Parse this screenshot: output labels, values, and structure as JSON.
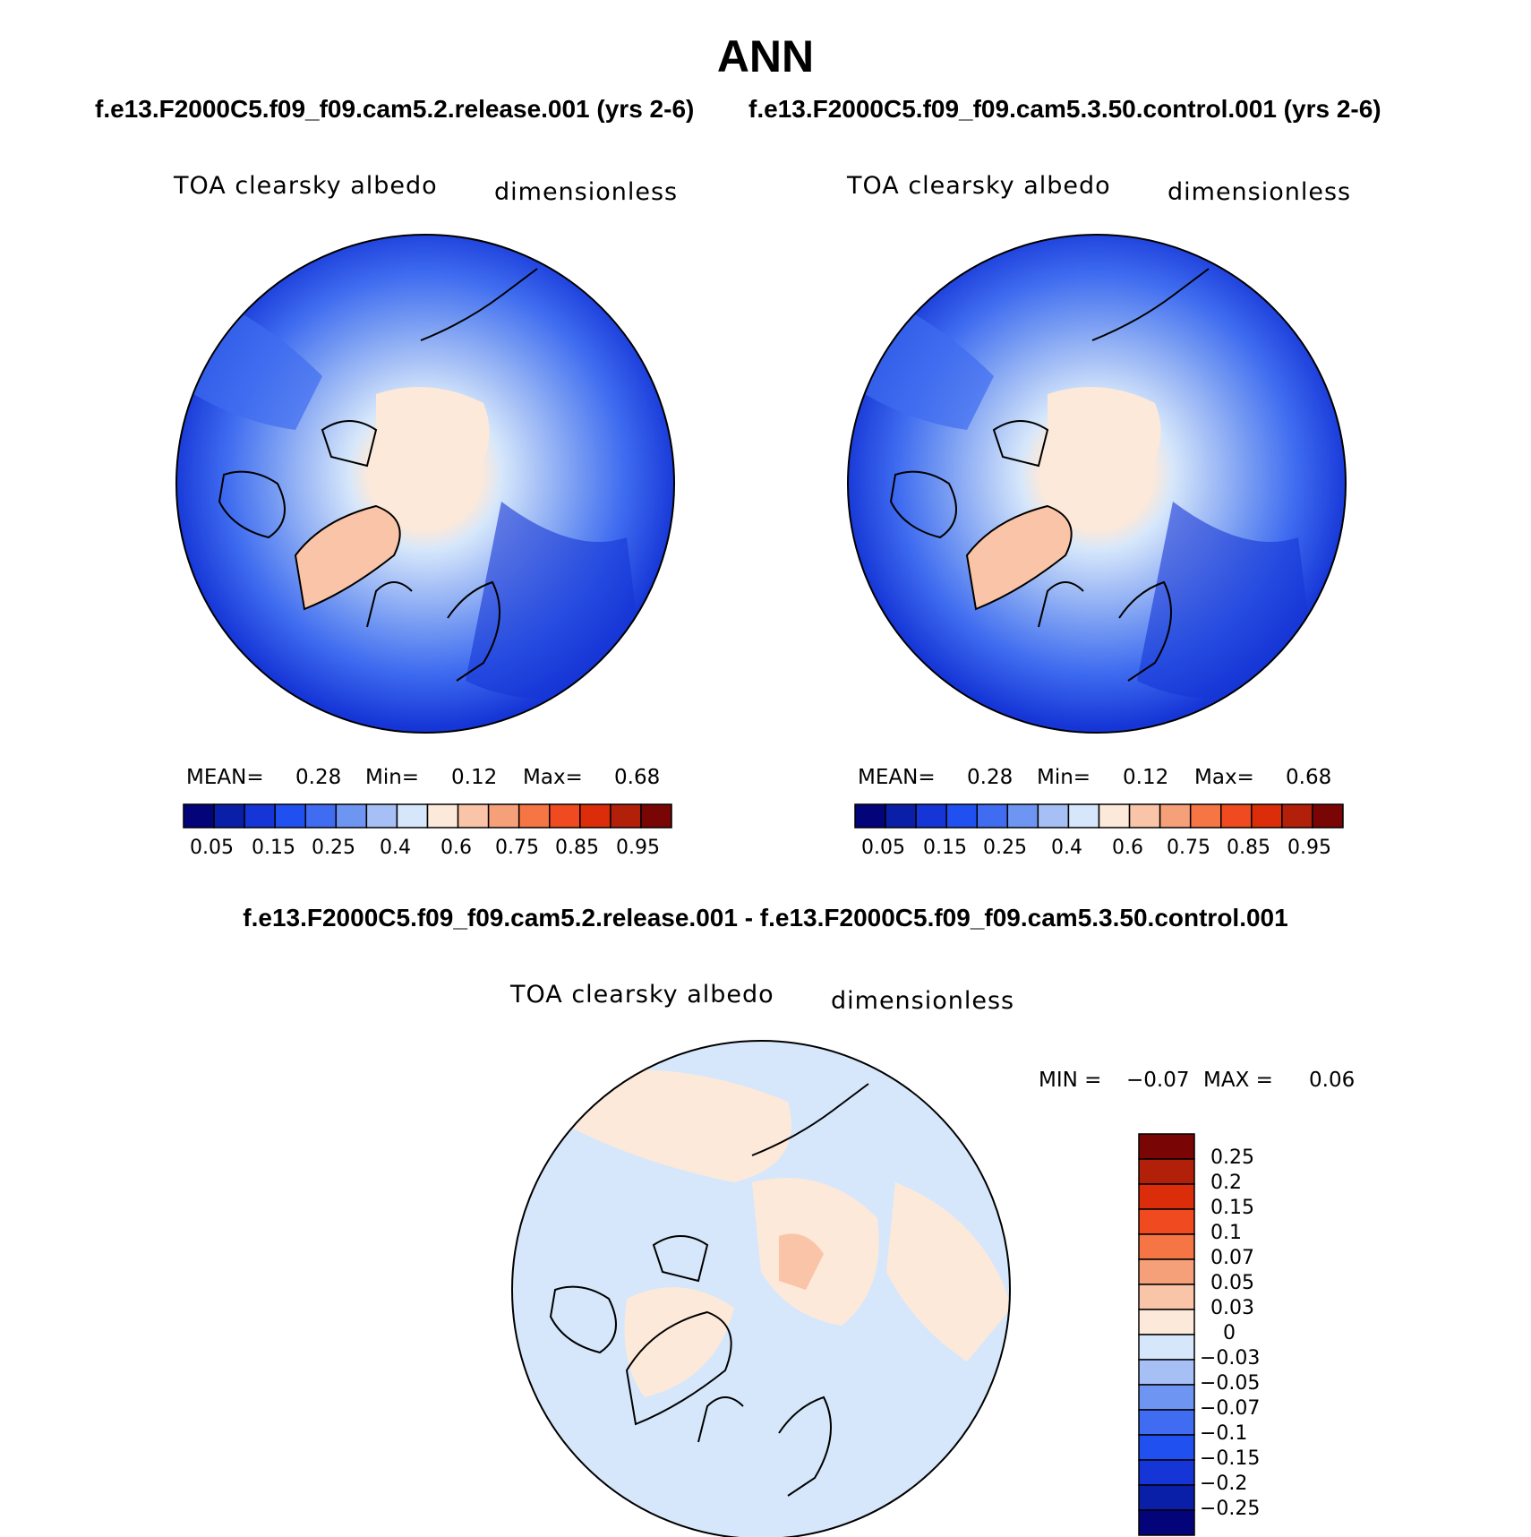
{
  "page": {
    "title": "ANN",
    "case_a_title": "f.e13.F2000C5.f09_f09.cam5.2.release.001 (yrs 2-6)",
    "case_b_title": "f.e13.F2000C5.f09_f09.cam5.3.50.control.001 (yrs 2-6)",
    "diff_title": "f.e13.F2000C5.f09_f09.cam5.2.release.001 - f.e13.F2000C5.f09_f09.cam5.3.50.control.001"
  },
  "panels": [
    {
      "id": "case-a",
      "variable": "TOA clearsky albedo",
      "units": "dimensionless",
      "stats": {
        "mean_label": "MEAN=",
        "mean": "0.28",
        "min_label": "Min=",
        "min": "0.12",
        "max_label": "Max=",
        "max": "0.68"
      }
    },
    {
      "id": "case-b",
      "variable": "TOA clearsky albedo",
      "units": "dimensionless",
      "stats": {
        "mean_label": "MEAN=",
        "mean": "0.28",
        "min_label": "Min=",
        "min": "0.12",
        "max_label": "Max=",
        "max": "0.68"
      }
    },
    {
      "id": "difference",
      "variable": "TOA clearsky albedo",
      "units": "dimensionless",
      "stats": {
        "min_label": "MIN =",
        "min": "−0.07",
        "max_label": "MAX =",
        "max": "0.06"
      }
    }
  ],
  "colorbar_main": {
    "colors": [
      "#04047a",
      "#0a1fa8",
      "#1535d6",
      "#2050f0",
      "#3f6cf0",
      "#6f95f2",
      "#a6c0f6",
      "#d6e7fb",
      "#fce9da",
      "#f9c4a8",
      "#f6a07a",
      "#f57545",
      "#f04a20",
      "#db2d0a",
      "#b3200a",
      "#7a0505"
    ],
    "labels": [
      "0.05",
      "0.15",
      "0.25",
      "0.4",
      "0.6",
      "0.75",
      "0.85",
      "0.95"
    ]
  },
  "colorbar_diff": {
    "colors_top_to_bottom": [
      "#7a0505",
      "#b3200a",
      "#db2d0a",
      "#f04a20",
      "#f57545",
      "#f6a07a",
      "#f9c4a8",
      "#fce9da",
      "#d6e7fb",
      "#a6c0f6",
      "#6f95f2",
      "#3f6cf0",
      "#2050f0",
      "#1535d6",
      "#0a1fa8",
      "#04047a"
    ],
    "labels": [
      "0.25",
      "0.2",
      "0.15",
      "0.1",
      "0.07",
      "0.05",
      "0.03",
      "0",
      "−0.03",
      "−0.05",
      "−0.07",
      "−0.1",
      "−0.15",
      "−0.2",
      "−0.25"
    ]
  },
  "chart_data": {
    "type": "map",
    "projection": "north polar stereographic",
    "field": "TOA clearsky albedo",
    "units": "dimensionless",
    "maps": [
      {
        "name": "f.e13.F2000C5.f09_f09.cam5.2.release.001 (yrs 2-6)",
        "mean": 0.28,
        "min": 0.12,
        "max": 0.68
      },
      {
        "name": "f.e13.F2000C5.f09_f09.cam5.3.50.control.001 (yrs 2-6)",
        "mean": 0.28,
        "min": 0.12,
        "max": 0.68
      },
      {
        "name": "difference",
        "min": -0.07,
        "max": 0.06
      }
    ]
  }
}
